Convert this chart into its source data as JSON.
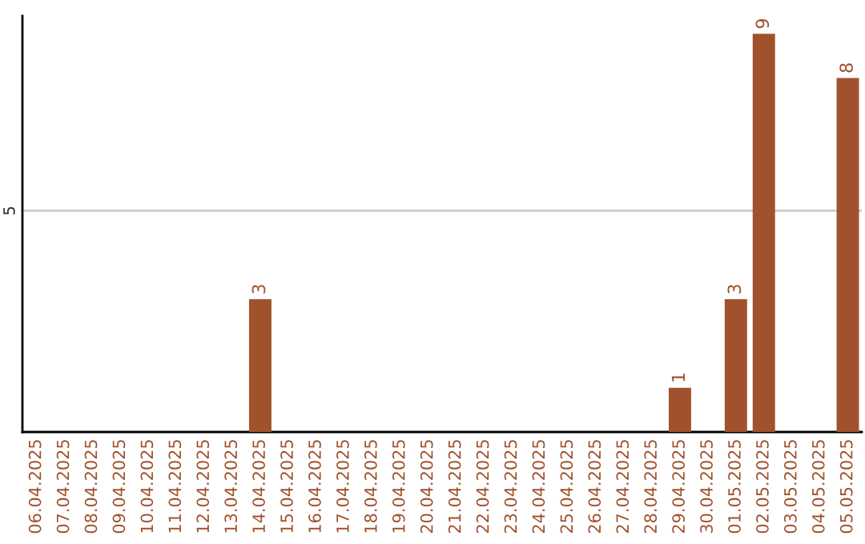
{
  "chart_data": {
    "type": "bar",
    "categories": [
      "06.04.2025",
      "07.04.2025",
      "08.04.2025",
      "09.04.2025",
      "10.04.2025",
      "11.04.2025",
      "12.04.2025",
      "13.04.2025",
      "14.04.2025",
      "15.04.2025",
      "16.04.2025",
      "17.04.2025",
      "18.04.2025",
      "19.04.2025",
      "20.04.2025",
      "21.04.2025",
      "22.04.2025",
      "23.04.2025",
      "24.04.2025",
      "25.04.2025",
      "26.04.2025",
      "27.04.2025",
      "28.04.2025",
      "29.04.2025",
      "30.04.2025",
      "01.05.2025",
      "02.05.2025",
      "03.05.2025",
      "04.05.2025",
      "05.05.2025"
    ],
    "values": [
      0,
      0,
      0,
      0,
      0,
      0,
      0,
      0,
      3,
      0,
      0,
      0,
      0,
      0,
      0,
      0,
      0,
      0,
      0,
      0,
      0,
      0,
      0,
      1,
      0,
      3,
      9,
      0,
      0,
      8
    ],
    "value_labels": [
      null,
      null,
      null,
      null,
      null,
      null,
      null,
      null,
      "3",
      null,
      null,
      null,
      null,
      null,
      null,
      null,
      null,
      null,
      null,
      null,
      null,
      null,
      null,
      "1",
      null,
      "3",
      "9",
      null,
      null,
      "8"
    ],
    "color": "#a0522d",
    "ylim": [
      0,
      9.4
    ],
    "yticks": [
      5
    ],
    "grid": "y"
  }
}
